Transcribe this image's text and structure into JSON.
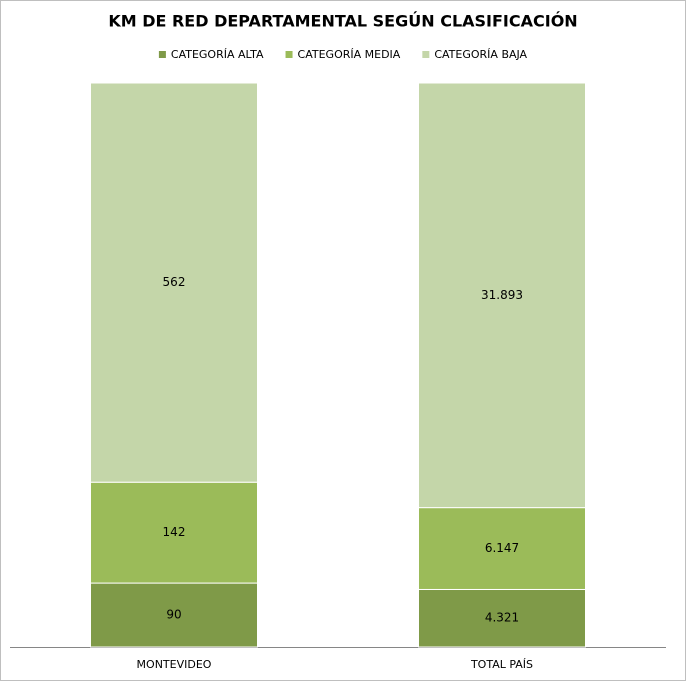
{
  "chart_data": {
    "type": "bar",
    "stacking": "percent",
    "title": "KM DE RED DEPARTAMENTAL SEGÚN CLASIFICACIÓN",
    "categories": [
      "MONTEVIDEO",
      "TOTAL PAÍS"
    ],
    "series": [
      {
        "name": "CATEGORÍA ALTA",
        "color": "#7f9a48",
        "values": [
          90,
          4321
        ],
        "value_labels": [
          "90",
          "4.321"
        ]
      },
      {
        "name": "CATEGORÍA MEDIA",
        "color": "#9bbb59",
        "values": [
          142,
          6147
        ],
        "value_labels": [
          "142",
          "6.147"
        ]
      },
      {
        "name": "CATEGORÍA BAJA",
        "color": "#c4d6a9",
        "values": [
          562,
          31893
        ],
        "value_labels": [
          "562",
          "31.893"
        ]
      }
    ],
    "legend": "top"
  }
}
